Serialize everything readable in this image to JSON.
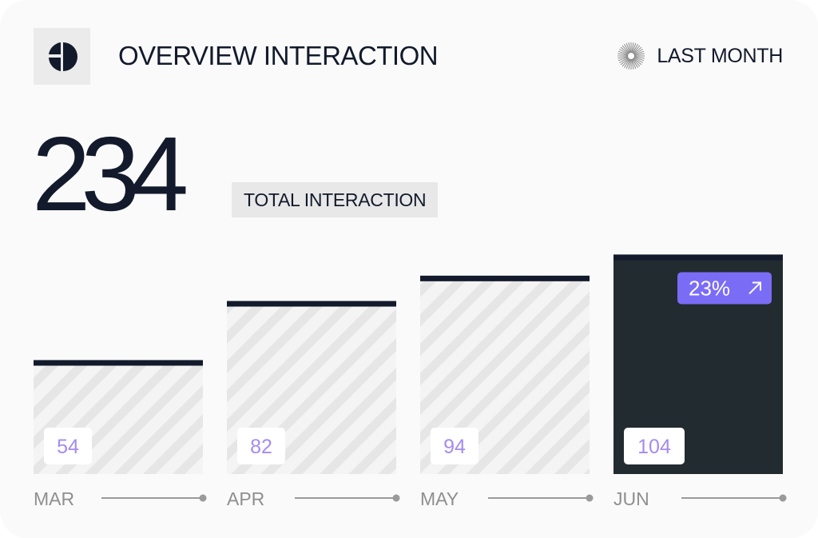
{
  "header": {
    "title": "OVERVIEW INTERACTION",
    "period_label": "LAST MONTH",
    "logo_icon": "half-circle-logo-icon",
    "period_icon": "sunburst-icon"
  },
  "summary": {
    "total": "234",
    "total_label": "TOTAL INTERACTION"
  },
  "colors": {
    "dark": "#222b30",
    "bar_top": "#121a2c",
    "hatch_bg": "#f4f4f4",
    "hatch_line": "#e6e6e6",
    "accent": "#7b6cf6",
    "value_text": "#a58bf0",
    "axis_line": "#9a9a9a",
    "axis_text": "#8f8f8f"
  },
  "chart_data": {
    "type": "bar",
    "categories": [
      "MAR",
      "APR",
      "MAY",
      "JUN"
    ],
    "values": [
      54,
      82,
      94,
      104
    ],
    "highlight_index": 3,
    "highlight_badge": "23%",
    "ylim": [
      0,
      130
    ]
  }
}
